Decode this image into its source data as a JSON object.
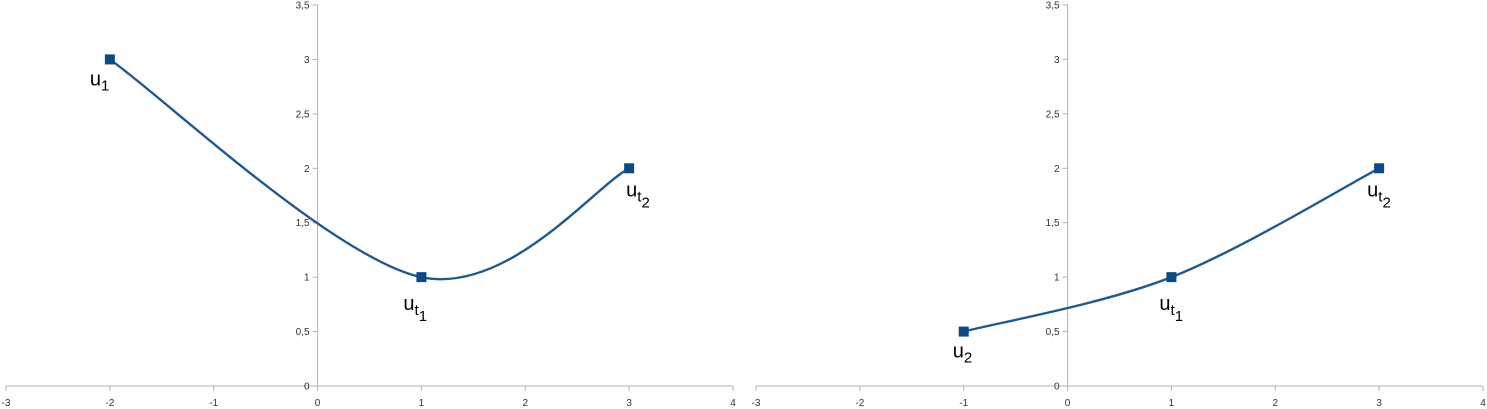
{
  "colors": {
    "series": "#1f5a8e",
    "marker": "#0b4a82",
    "axis": "#b3b3b3",
    "tick_text": "#333333"
  },
  "chart_data": [
    {
      "type": "line",
      "smooth": true,
      "title": "",
      "xlabel": "",
      "ylabel": "",
      "xlim": [
        -3,
        4
      ],
      "ylim": [
        0,
        3.5
      ],
      "x_ticks": [
        "-3",
        "-2",
        "-1",
        "0",
        "1",
        "2",
        "3",
        "4"
      ],
      "y_ticks": [
        "0",
        "0,5",
        "1",
        "1,5",
        "2",
        "2,5",
        "3",
        "3,5"
      ],
      "grid": false,
      "legend": "none",
      "series": [
        {
          "points": [
            {
              "x": -2,
              "y": 3,
              "label": {
                "base": "u",
                "sub": "1",
                "sub2": ""
              }
            },
            {
              "x": 1,
              "y": 1,
              "label": {
                "base": "u",
                "sub": "t",
                "sub2": "1"
              }
            },
            {
              "x": 3,
              "y": 2,
              "label": {
                "base": "u",
                "sub": "t",
                "sub2": "2"
              }
            }
          ]
        }
      ]
    },
    {
      "type": "line",
      "smooth": true,
      "title": "",
      "xlabel": "",
      "ylabel": "",
      "xlim": [
        -3,
        4
      ],
      "ylim": [
        0,
        3.5
      ],
      "x_ticks": [
        "-3",
        "-2",
        "-1",
        "0",
        "1",
        "2",
        "3",
        "4"
      ],
      "y_ticks": [
        "0",
        "0,5",
        "1",
        "1,5",
        "2",
        "2,5",
        "3",
        "3,5"
      ],
      "grid": false,
      "legend": "none",
      "series": [
        {
          "points": [
            {
              "x": -1,
              "y": 0.5,
              "label": {
                "base": "u",
                "sub": "2",
                "sub2": ""
              }
            },
            {
              "x": 1,
              "y": 1,
              "label": {
                "base": "u",
                "sub": "t",
                "sub2": "1"
              }
            },
            {
              "x": 3,
              "y": 2,
              "label": {
                "base": "u",
                "sub": "t",
                "sub2": "2"
              }
            }
          ]
        }
      ]
    }
  ]
}
